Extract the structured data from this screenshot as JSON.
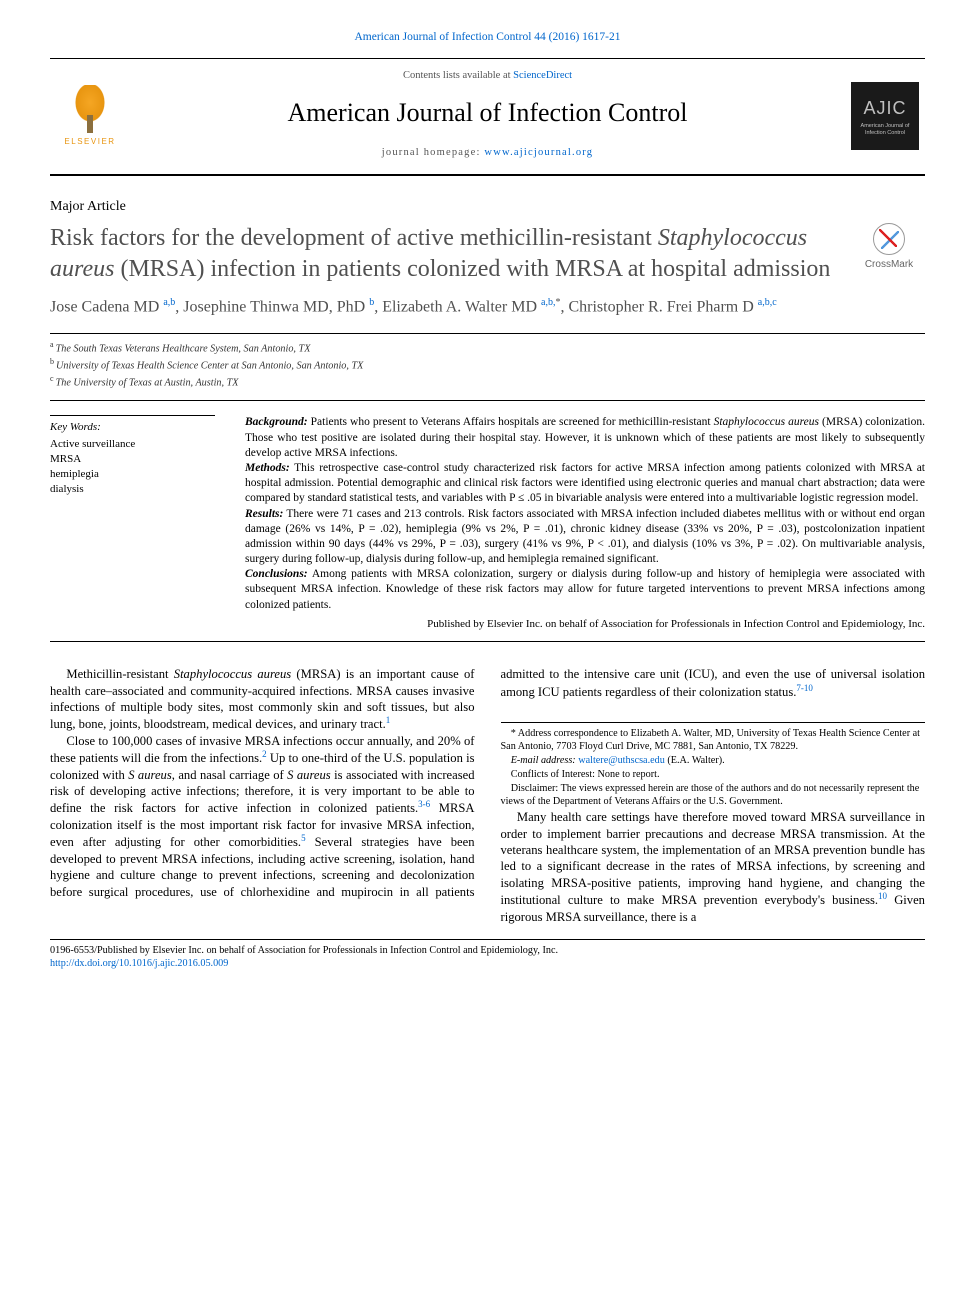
{
  "citation": "American Journal of Infection Control 44 (2016) 1617-21",
  "masthead": {
    "contents_prefix": "Contents lists available at ",
    "contents_link": "ScienceDirect",
    "journal_title": "American Journal of Infection Control",
    "homepage_prefix": "journal homepage: ",
    "homepage_link": "www.ajicjournal.org",
    "elsevier_label": "ELSEVIER",
    "ajic_label": "AJIC",
    "ajic_sub": "American Journal of Infection Control"
  },
  "article_type": "Major Article",
  "title_parts": {
    "pre": "Risk factors for the development of active methicillin-resistant ",
    "ital": "Staphylococcus aureus",
    "post": " (MRSA) infection in patients colonized with MRSA at hospital admission"
  },
  "crossmark_label": "CrossMark",
  "authors": [
    {
      "name": "Jose Cadena MD ",
      "aff": "a,b"
    },
    {
      "name": ", Josephine Thinwa MD, PhD ",
      "aff": "b"
    },
    {
      "name": ", Elizabeth A. Walter MD ",
      "aff": "a,b,",
      "star": "*"
    },
    {
      "name": ", Christopher R. Frei Pharm D ",
      "aff": "a,b,c"
    }
  ],
  "affiliations": [
    {
      "sup": "a",
      "text": "The South Texas Veterans Healthcare System, San Antonio, TX"
    },
    {
      "sup": "b",
      "text": "University of Texas Health Science Center at San Antonio, San Antonio, TX"
    },
    {
      "sup": "c",
      "text": "The University of Texas at Austin, Austin, TX"
    }
  ],
  "keywords": {
    "head": "Key Words:",
    "items": [
      "Active surveillance",
      "MRSA",
      "hemiplegia",
      "dialysis"
    ]
  },
  "abstract": {
    "background_label": "Background:",
    "background_text_1": " Patients who present to Veterans Affairs hospitals are screened for methicillin-resistant ",
    "background_ital": "Staphylococcus aureus",
    "background_text_2": " (MRSA) colonization. Those who test positive are isolated during their hospital stay. However, it is unknown which of these patients are most likely to subsequently develop active MRSA infections.",
    "methods_label": "Methods:",
    "methods_text": " This retrospective case-control study characterized risk factors for active MRSA infection among patients colonized with MRSA at hospital admission. Potential demographic and clinical risk factors were identified using electronic queries and manual chart abstraction; data were compared by standard statistical tests, and variables with P ≤ .05 in bivariable analysis were entered into a multivariable logistic regression model.",
    "results_label": "Results:",
    "results_text": " There were 71 cases and 213 controls. Risk factors associated with MRSA infection included diabetes mellitus with or without end organ damage (26% vs 14%, P = .02), hemiplegia (9% vs 2%, P = .01), chronic kidney disease (33% vs 20%, P = .03), postcolonization inpatient admission within 90 days (44% vs 29%, P = .03), surgery (41% vs 9%, P < .01), and dialysis (10% vs 3%, P = .02). On multivariable analysis, surgery during follow-up, dialysis during follow-up, and hemiplegia remained significant.",
    "conclusions_label": "Conclusions:",
    "conclusions_text": " Among patients with MRSA colonization, surgery or dialysis during follow-up and history of hemiplegia were associated with subsequent MRSA infection. Knowledge of these risk factors may allow for future targeted interventions to prevent MRSA infections among colonized patients.",
    "publisher": "Published by Elsevier Inc. on behalf of Association for Professionals in Infection Control and Epidemiology, Inc."
  },
  "body": {
    "p1_a": "Methicillin-resistant ",
    "p1_ital": "Staphylococcus aureus",
    "p1_b": " (MRSA) is an important cause of health care–associated and community-acquired infections. MRSA causes invasive infections of multiple body sites, most commonly skin and soft tissues, but also lung, bone, joints, bloodstream, medical devices, and urinary tract.",
    "p1_ref": "1",
    "p2_a": "Close to 100,000 cases of invasive MRSA infections occur annually, and 20% of these patients will die from the infections.",
    "p2_ref1": "2",
    "p2_b": " Up to one-third of the U.S. population is colonized with ",
    "p2_ital1": "S aureus",
    "p2_c": ", and nasal carriage of ",
    "p2_ital2": "S aureus",
    "p2_d": " is associated with increased risk of developing active infections; therefore, it is very important to be able to ",
    "p3_a": "define the risk factors for active infection in colonized patients.",
    "p3_ref1": "3-6",
    "p3_b": " MRSA colonization itself is the most important risk factor for invasive MRSA infection, even after adjusting for other comorbidities.",
    "p3_ref2": "5",
    "p3_c": " Several strategies have been developed to prevent MRSA infections, including active screening, isolation, hand hygiene and culture change to prevent infections, screening and decolonization before surgical procedures, use of chlorhexidine and mupirocin in all patients admitted to the intensive care unit (ICU), and even the use of universal isolation among ICU patients regardless of their colonization status.",
    "p3_ref3": "7-10",
    "p4_a": "Many health care settings have therefore moved toward MRSA surveillance in order to implement barrier precautions and decrease MRSA transmission. At the veterans healthcare system, the implementation of an MRSA prevention bundle has led to a significant decrease in the rates of MRSA infections, by screening and isolating MRSA-positive patients, improving hand hygiene, and changing the institutional culture to make MRSA prevention everybody's business.",
    "p4_ref": "10",
    "p4_b": " Given rigorous MRSA surveillance, there is a"
  },
  "footnotes": {
    "corr": "* Address correspondence to Elizabeth A. Walter, MD, University of Texas Health Science Center at San Antonio, 7703 Floyd Curl Drive, MC 7881, San Antonio, TX 78229.",
    "email_label": "E-mail address: ",
    "email": "waltere@uthscsa.edu",
    "email_who": " (E.A. Walter).",
    "coi": "Conflicts of Interest: None to report.",
    "disclaimer": "Disclaimer: The views expressed herein are those of the authors and do not necessarily represent the views of the Department of Veterans Affairs or the U.S. Government."
  },
  "footer": {
    "line1": "0196-6553/Published by Elsevier Inc. on behalf of Association for Professionals in Infection Control and Epidemiology, Inc.",
    "doi": "http://dx.doi.org/10.1016/j.ajic.2016.05.009"
  },
  "colors": {
    "link": "#0066cc",
    "title_gray": "#505050",
    "text": "#000000",
    "elsevier_orange": "#e89510"
  }
}
